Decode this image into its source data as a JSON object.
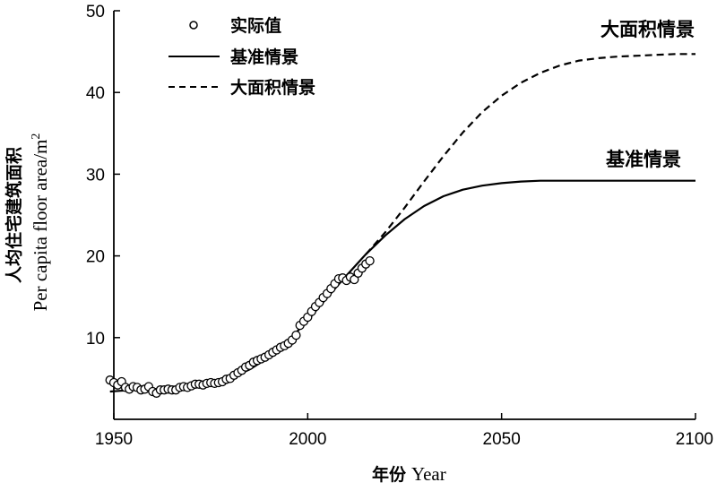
{
  "chart_data": {
    "type": "line",
    "xlabel_cn": "年份",
    "xlabel_en": "Year",
    "ylabel_cn": "人均住宅建筑面积",
    "ylabel_en": "Per capita floor area/m",
    "ylabel_sup": "2",
    "xlim": [
      1950,
      2100
    ],
    "ylim": [
      0,
      50
    ],
    "xticks": [
      1950,
      2000,
      2050,
      2100
    ],
    "yticks": [
      10,
      20,
      30,
      40,
      50
    ],
    "grid": false,
    "legend_position": "top-left",
    "legend": [
      {
        "label": "实际值",
        "style": "open-circle-marker"
      },
      {
        "label": "基准情景",
        "style": "solid-line"
      },
      {
        "label": "大面积情景",
        "style": "dashed-line"
      }
    ],
    "annotations": [
      {
        "text": "大面积情景",
        "series": "大面积情景"
      },
      {
        "text": "基准情景",
        "series": "基准情景"
      }
    ],
    "series": [
      {
        "name": "实际值",
        "kind": "scatter",
        "x": [
          1949,
          1950,
          1951,
          1952,
          1953,
          1954,
          1955,
          1956,
          1957,
          1958,
          1959,
          1960,
          1961,
          1962,
          1963,
          1964,
          1965,
          1966,
          1967,
          1968,
          1969,
          1970,
          1971,
          1972,
          1973,
          1974,
          1975,
          1976,
          1977,
          1978,
          1979,
          1980,
          1981,
          1982,
          1983,
          1984,
          1985,
          1986,
          1987,
          1988,
          1989,
          1990,
          1991,
          1992,
          1993,
          1994,
          1995,
          1996,
          1997,
          1998,
          1999,
          2000,
          2001,
          2002,
          2003,
          2004,
          2005,
          2006,
          2007,
          2008,
          2009,
          2010,
          2011,
          2012,
          2013,
          2014,
          2015,
          2016
        ],
        "y": [
          4.8,
          4.5,
          4.2,
          4.6,
          3.9,
          3.7,
          4.0,
          3.9,
          3.6,
          3.7,
          4.0,
          3.4,
          3.2,
          3.6,
          3.6,
          3.7,
          3.6,
          3.6,
          3.9,
          4.0,
          3.9,
          4.1,
          4.3,
          4.3,
          4.2,
          4.4,
          4.5,
          4.4,
          4.5,
          4.6,
          4.9,
          5.0,
          5.4,
          5.7,
          6.0,
          6.4,
          6.6,
          7.0,
          7.2,
          7.4,
          7.6,
          7.9,
          8.2,
          8.5,
          8.8,
          9.0,
          9.3,
          9.7,
          10.3,
          11.5,
          12.0,
          12.5,
          13.2,
          13.8,
          14.3,
          14.9,
          15.4,
          16.0,
          16.6,
          17.2,
          17.3,
          17.0,
          17.4,
          17.1,
          17.9,
          18.5,
          19.0,
          19.4
        ]
      },
      {
        "name": "基准情景",
        "kind": "line",
        "style": "solid",
        "x": [
          1949,
          1955,
          1960,
          1965,
          1970,
          1975,
          1980,
          1985,
          1990,
          1995,
          2000,
          2005,
          2010,
          2015,
          2020,
          2025,
          2030,
          2035,
          2040,
          2045,
          2050,
          2055,
          2060,
          2065,
          2070,
          2075,
          2080,
          2090,
          2100
        ],
        "y": [
          3.4,
          3.6,
          3.7,
          3.8,
          4.0,
          4.3,
          5.0,
          6.1,
          7.6,
          9.6,
          12.1,
          14.9,
          17.6,
          20.2,
          22.5,
          24.5,
          26.1,
          27.3,
          28.1,
          28.6,
          28.9,
          29.1,
          29.2,
          29.2,
          29.2,
          29.2,
          29.2,
          29.2,
          29.2
        ]
      },
      {
        "name": "大面积情景",
        "kind": "line",
        "style": "dashed",
        "x": [
          2015,
          2020,
          2025,
          2030,
          2035,
          2040,
          2045,
          2050,
          2055,
          2060,
          2065,
          2070,
          2075,
          2080,
          2085,
          2090,
          2095,
          2100
        ],
        "y": [
          20.2,
          22.9,
          25.9,
          29.1,
          32.2,
          35.1,
          37.6,
          39.6,
          41.2,
          42.4,
          43.3,
          43.9,
          44.2,
          44.4,
          44.5,
          44.6,
          44.7,
          44.7
        ]
      }
    ]
  }
}
